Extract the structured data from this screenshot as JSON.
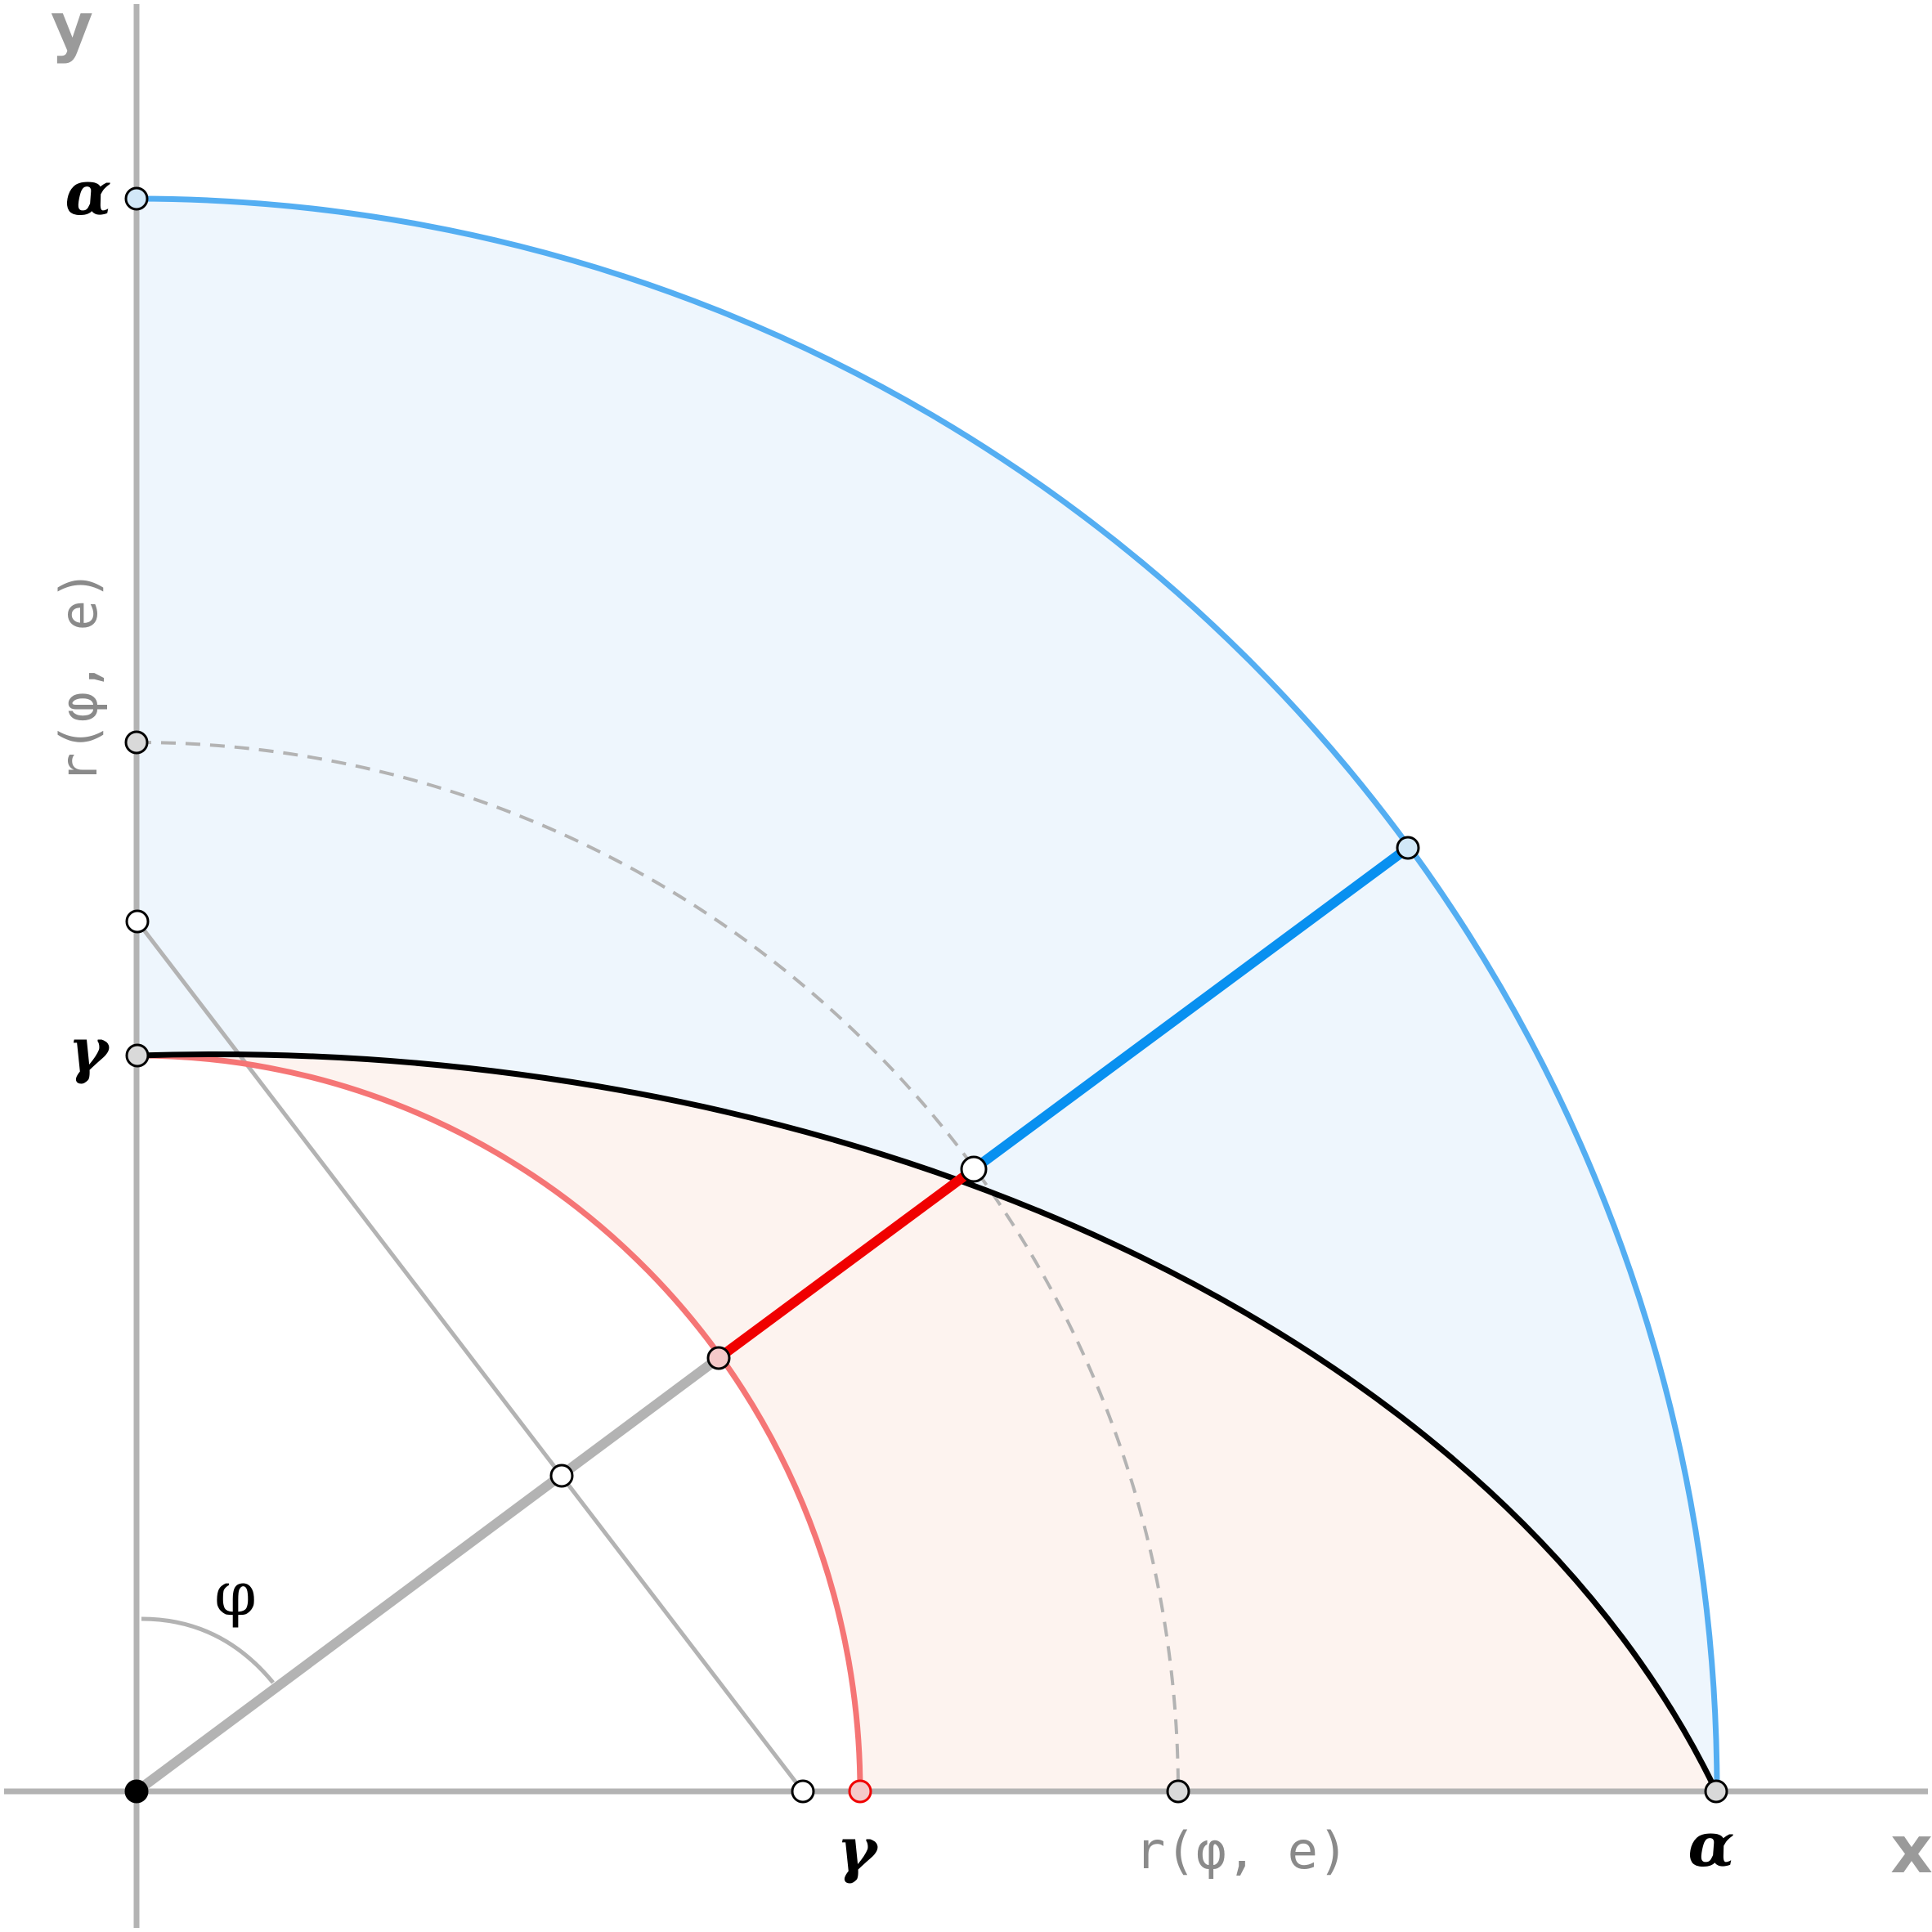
{
  "labels": {
    "x_axis": "x",
    "y_axis": "y",
    "alpha": "α",
    "gamma": "γ",
    "phi": "φ",
    "radius_x": "r(φ, e)",
    "radius_y": "r(φ, e)"
  },
  "colors": {
    "axis": "#b3b3b3",
    "outer_circle": "#54aef2",
    "outer_fill": "#eef6fd",
    "inner_circle": "#f57575",
    "inner_fill": "#fdf3ef",
    "ellipse": "#000000",
    "blue_segment": "#0890f0",
    "red_segment": "#f00000",
    "dashed_radius": "#b3b3b3"
  }
}
